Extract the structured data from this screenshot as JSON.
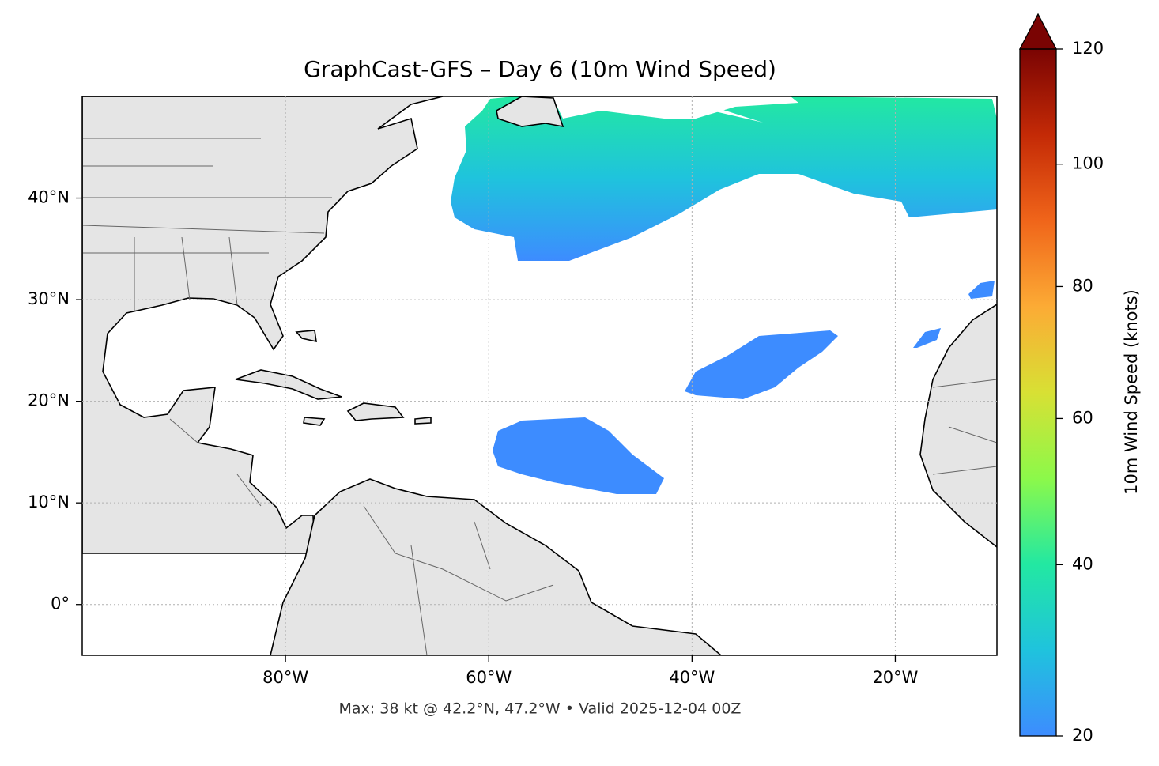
{
  "chart_data": {
    "type": "map",
    "title": "GraphCast-GFS – Day 6 (10m Wind Speed)",
    "annotation": "Max: 38 kt @ 42.2°N, 47.2°W • Valid 2025-12-04 00Z",
    "xlim": [
      -100,
      -10
    ],
    "ylim": [
      -5,
      50
    ],
    "xticks": [
      {
        "value": -80,
        "label": "80°W"
      },
      {
        "value": -60,
        "label": "60°W"
      },
      {
        "value": -40,
        "label": "40°W"
      },
      {
        "value": -20,
        "label": "20°W"
      }
    ],
    "yticks": [
      {
        "value": 0,
        "label": "0°"
      },
      {
        "value": 10,
        "label": "10°N"
      },
      {
        "value": 20,
        "label": "20°N"
      },
      {
        "value": 30,
        "label": "30°N"
      },
      {
        "value": 40,
        "label": "40°N"
      }
    ],
    "grid": true,
    "colorbar": {
      "label": "10m Wind Speed (knots)",
      "lim": [
        20,
        120
      ],
      "ticks": [
        20,
        40,
        60,
        80,
        100,
        120
      ],
      "gamma": 0.7,
      "colors": [
        "#3d8cff",
        "#1fc3dd",
        "#22e8a2",
        "#8cf94a",
        "#d8e034",
        "#fcab35",
        "#f0651a",
        "#c42a06",
        "#7a0403"
      ]
    }
  }
}
